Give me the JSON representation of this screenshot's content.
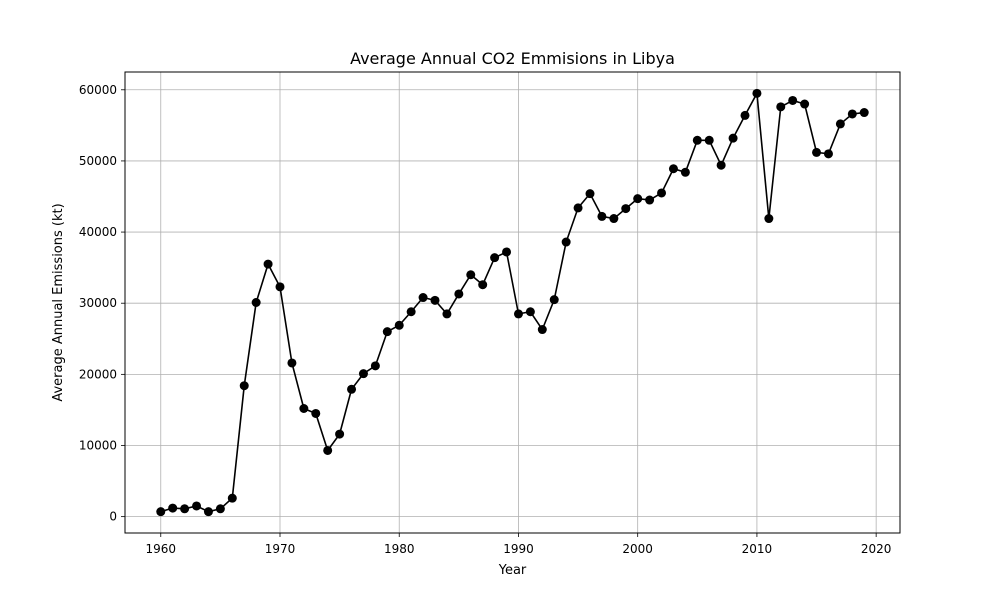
{
  "chart_data": {
    "type": "line",
    "title": "Average Annual CO2 Emmisions in Libya",
    "xlabel": "Year",
    "ylabel": "Average Annual Emissions (kt)",
    "xlim": [
      1957,
      2022
    ],
    "ylim": [
      -2300,
      62500
    ],
    "xticks": [
      1960,
      1970,
      1980,
      1990,
      2000,
      2010,
      2020
    ],
    "yticks": [
      0,
      10000,
      20000,
      30000,
      40000,
      50000,
      60000
    ],
    "grid": true,
    "series": [
      {
        "color": "#000000",
        "marker": "circle",
        "x": [
          1960,
          1961,
          1962,
          1963,
          1964,
          1965,
          1966,
          1967,
          1968,
          1969,
          1970,
          1971,
          1972,
          1973,
          1974,
          1975,
          1976,
          1977,
          1978,
          1979,
          1980,
          1981,
          1982,
          1983,
          1984,
          1985,
          1986,
          1987,
          1988,
          1989,
          1990,
          1991,
          1992,
          1993,
          1994,
          1995,
          1996,
          1997,
          1998,
          1999,
          2000,
          2001,
          2002,
          2003,
          2004,
          2005,
          2006,
          2007,
          2008,
          2009,
          2010,
          2011,
          2012,
          2013,
          2014,
          2015,
          2016,
          2017,
          2018,
          2019
        ],
        "y": [
          700,
          1200,
          1100,
          1500,
          700,
          1100,
          2600,
          18400,
          30100,
          35500,
          32300,
          21600,
          15200,
          14500,
          9300,
          11600,
          17900,
          20100,
          21200,
          26000,
          26900,
          28800,
          30800,
          30400,
          28500,
          31300,
          34000,
          32600,
          36400,
          37200,
          28500,
          28800,
          26300,
          30500,
          38600,
          43400,
          45400,
          42200,
          41900,
          43300,
          44700,
          44500,
          45500,
          48900,
          48400,
          52900,
          52900,
          49400,
          53200,
          56400,
          59500,
          41900,
          57600,
          58500,
          58000,
          51200,
          51000,
          55200,
          56600,
          56800
        ]
      }
    ]
  }
}
